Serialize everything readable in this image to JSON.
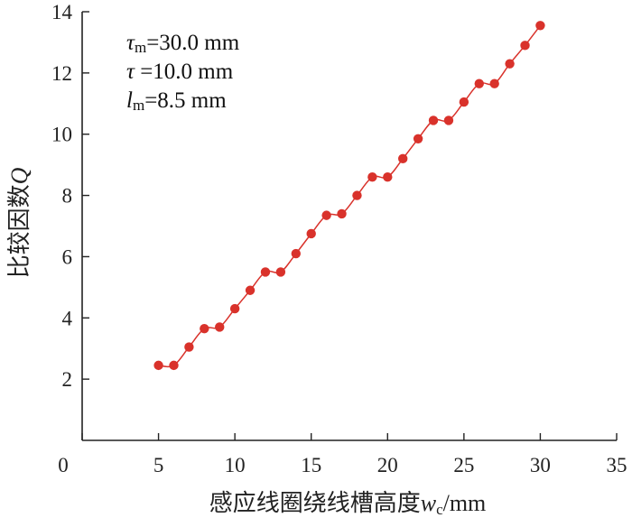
{
  "chart_data": {
    "type": "line",
    "title": "",
    "xlabel": "感应线圈绕线槽高度wc/mm",
    "xlabel_parts": {
      "main": "感应线圈绕线槽高度",
      "var": "w",
      "sub": "c",
      "unit": "/mm"
    },
    "ylabel": "比较因数Q",
    "ylabel_parts": {
      "main": "比较因数",
      "var": "Q"
    },
    "xlim": [
      0,
      35
    ],
    "ylim": [
      0,
      14
    ],
    "x_ticks": [
      0,
      5,
      10,
      15,
      20,
      25,
      30,
      35
    ],
    "y_ticks": [
      2,
      4,
      6,
      8,
      10,
      12,
      14
    ],
    "y_origin_label": "0",
    "grid": false,
    "marker": "circle",
    "series": [
      {
        "color": "#d9322b",
        "x": [
          5,
          6,
          7,
          8,
          9,
          10,
          11,
          12,
          13,
          14,
          15,
          16,
          17,
          18,
          19,
          20,
          21,
          22,
          23,
          24,
          25,
          26,
          27,
          28,
          29,
          30
        ],
        "y": [
          2.45,
          2.45,
          3.05,
          3.65,
          3.7,
          4.3,
          4.9,
          5.5,
          5.5,
          6.1,
          6.75,
          7.35,
          7.4,
          8.0,
          8.6,
          8.6,
          9.2,
          9.85,
          10.45,
          10.45,
          11.05,
          11.65,
          11.65,
          12.3,
          12.9,
          13.55
        ]
      }
    ],
    "annotations": [
      {
        "var": "τ",
        "sub": "m",
        "text": "=30.0 mm"
      },
      {
        "var": "τ",
        "sub": "",
        "text": " =10.0 mm"
      },
      {
        "var": "l",
        "sub": "m",
        "text": "=8.5 mm"
      }
    ]
  }
}
